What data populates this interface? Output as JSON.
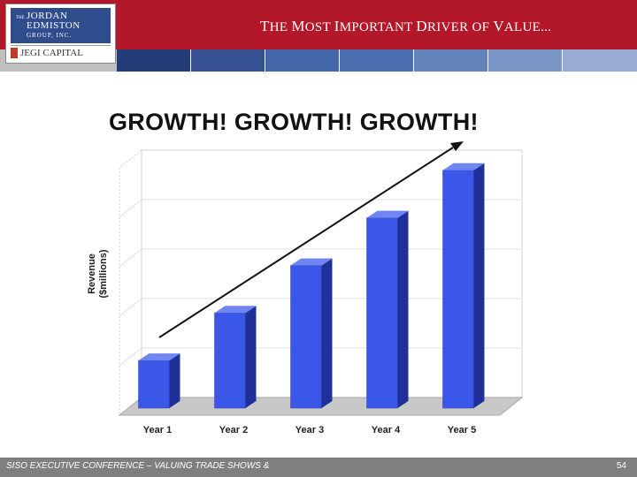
{
  "header": {
    "logo": {
      "small": "THE",
      "line1": "JORDAN",
      "line2": "EDMISTON",
      "line3": "GROUP, INC.",
      "sub": "JEGI CAPITAL"
    },
    "title_parts": [
      "T",
      "HE ",
      "M",
      "OST ",
      "I",
      "MPORTANT ",
      "D",
      "RIVER OF ",
      "V",
      "ALUE..."
    ]
  },
  "chart_data": {
    "type": "bar",
    "title": "GROWTH! GROWTH! GROWTH!",
    "xlabel": "",
    "ylabel": [
      "Revenue",
      "($millions)"
    ],
    "categories": [
      "Year 1",
      "Year 2",
      "Year 3",
      "Year 4",
      "Year 5"
    ],
    "values": [
      1.0,
      2.0,
      3.0,
      4.0,
      5.0
    ],
    "ylim": [
      0,
      5.2
    ],
    "grid": true,
    "bar_color": "#3b57e8",
    "trend_arrow": true
  },
  "footer": {
    "text": "SISO EXECUTIVE CONFERENCE – VALUING TRADE SHOWS &",
    "page": "54"
  },
  "colors": {
    "header": "#b3182a",
    "footer": "#7f7f7f",
    "stripes": [
      "#c0c0c0",
      "#243c78",
      "#355192",
      "#4366a8",
      "#6383bb",
      "#98acd2"
    ]
  }
}
